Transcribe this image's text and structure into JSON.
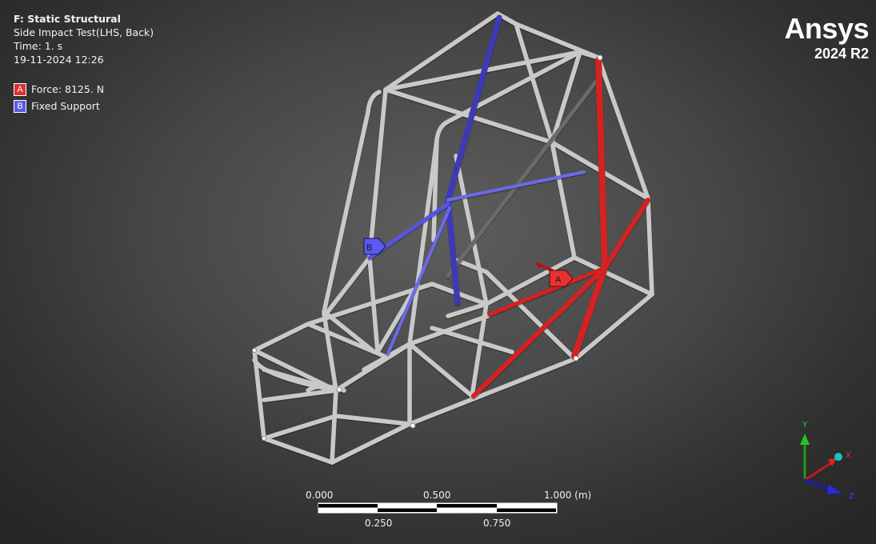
{
  "info": {
    "title": "F: Static Structural",
    "subtitle": "Side Impact Test(LHS, Back)",
    "time": "Time: 1. s",
    "date": "19-11-2024 12:26"
  },
  "legend": [
    {
      "tag": "A",
      "label": "Force: 8125. N",
      "color": "#e03030"
    },
    {
      "tag": "B",
      "label": "Fixed Support",
      "color": "#5a5ae6"
    }
  ],
  "brand": {
    "name": "Ansys",
    "version": "2024 R2"
  },
  "scale": {
    "top_labels": [
      "0.000",
      "0.500",
      "1.000 (m)"
    ],
    "bottom_labels": [
      "0.250",
      "0.750"
    ]
  },
  "triad": {
    "x": "X",
    "y": "Y",
    "z": "Z"
  },
  "markers": {
    "force": "A",
    "support": "B"
  },
  "colors": {
    "frame": "#c9c9c9",
    "force": "#d42424",
    "support": "#3a3ab8",
    "background": "#474747"
  }
}
